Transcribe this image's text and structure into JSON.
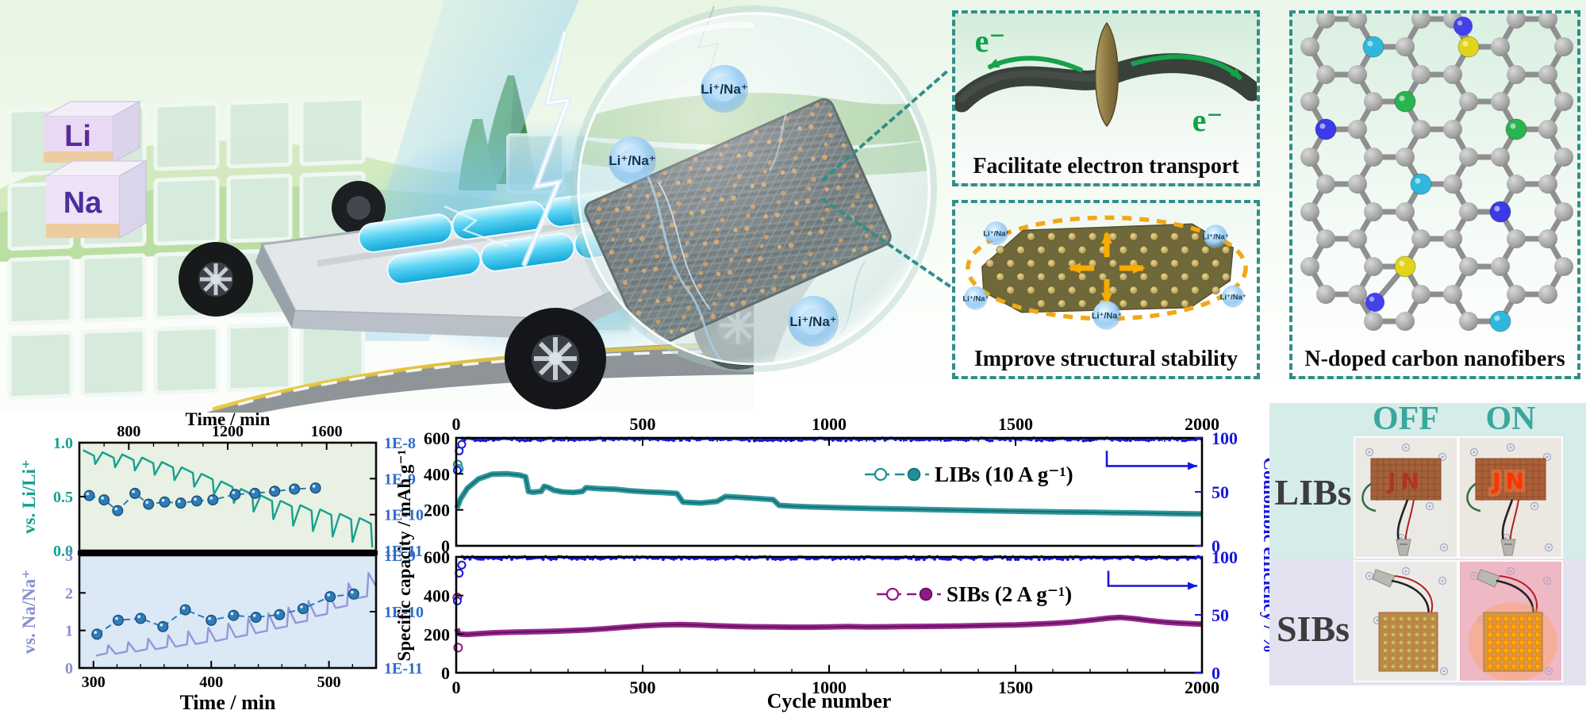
{
  "scene": {
    "cubes": [
      {
        "symbol": "Li"
      },
      {
        "symbol": "Na"
      }
    ],
    "ion_labels": [
      "Li⁺/Na⁺",
      "Li⁺/Na⁺",
      "Li⁺/Na⁺"
    ]
  },
  "callouts": {
    "electron": {
      "caption": "Facilitate electron transport",
      "labels": [
        "e⁻",
        "e⁻"
      ],
      "arrow_color": "#16a24a"
    },
    "stability": {
      "caption": "Improve structural stability",
      "arrow_color": "#f6a800",
      "ions": [
        "Li⁺/Na⁺",
        "Li⁺/Na⁺",
        "Li⁺/Na⁺",
        "Li⁺/Na⁺",
        "Li⁺/Na⁺"
      ]
    },
    "molecule": {
      "caption": "N-doped carbon nanofibers",
      "hetero": [
        [
          88,
          30,
          "#2fb7dd"
        ],
        [
          235,
          52,
          "#e0d41c"
        ],
        [
          123,
          110,
          "#28b44e"
        ],
        [
          52,
          165,
          "#3a3ae8"
        ],
        [
          143,
          212,
          "#2fb7dd"
        ],
        [
          272,
          163,
          "#28b44e"
        ],
        [
          292,
          248,
          "#3a3ae8"
        ],
        [
          130,
          332,
          "#e0d41c"
        ],
        [
          255,
          376,
          "#2fb7dd"
        ]
      ],
      "pendants": [
        [
          235,
          52,
          215,
          16,
          "#4242e8"
        ],
        [
          130,
          332,
          104,
          364,
          "#4242e8"
        ]
      ]
    }
  },
  "photos": {
    "col_headers": [
      "OFF",
      "ON"
    ],
    "row_headers": [
      "LIBs",
      "SIBs"
    ],
    "led_label": "JN",
    "header_color": "#38a89d"
  },
  "palette": {
    "callout_border": "#2f8f88",
    "electron_green": "#12a24a",
    "stability_orange": "#f6a800",
    "libs_teal": "#1f8f96",
    "sibs_purple": "#8e1886",
    "coulombic_blue": "#1717dd",
    "diffusion_dot_blue": "#2e7cb8",
    "li_axis_teal": "#16a08e",
    "na_axis_purple": "#8a8fd2"
  },
  "chart_data": [
    {
      "type": "line",
      "id": "gitt",
      "xlabel_top": "Time / min",
      "xlabel_bottom": "Time / min",
      "right_axis_color": "#2f6cc8",
      "grid": false,
      "panels": [
        {
          "name": "LIB GITT",
          "ylabel": "vs. Li/Li⁺",
          "axis_color": "#16a08e",
          "bg": "#e8f1e3",
          "xlim": [
            600,
            1800
          ],
          "x_ticks": [
            800,
            1200,
            1600
          ],
          "minor_step": 100,
          "ylim": [
            0,
            1
          ],
          "y_ticks": [
            "1.0",
            "0.5",
            "0.0"
          ],
          "right_labels": [
            "1E-8",
            "1E-9",
            "1E-10",
            "1E-11"
          ],
          "line_color": "#16a08e",
          "sawtooth": {
            "x0": 615,
            "period": 80,
            "slope": 0.05,
            "drop": 0.22,
            "tops": [
              0.93,
              0.91,
              0.89,
              0.86,
              0.82,
              0.77,
              0.71,
              0.64,
              0.57,
              0.51,
              0.46,
              0.42,
              0.38,
              0.34,
              0.3
            ]
          },
          "dot_color": "#2e7cb8",
          "dots": [
            [
              640,
              0.51
            ],
            [
              700,
              0.47
            ],
            [
              755,
              0.37
            ],
            [
              825,
              0.53
            ],
            [
              880,
              0.43
            ],
            [
              945,
              0.45
            ],
            [
              1010,
              0.44
            ],
            [
              1075,
              0.46
            ],
            [
              1140,
              0.47
            ],
            [
              1230,
              0.52
            ],
            [
              1310,
              0.53
            ],
            [
              1390,
              0.55
            ],
            [
              1470,
              0.57
            ],
            [
              1555,
              0.58
            ]
          ]
        },
        {
          "name": "SIB GITT",
          "ylabel": "vs. Na/Na⁺",
          "axis_color": "#8a8fd2",
          "bg": "#dbe8f6",
          "xlim": [
            288,
            540
          ],
          "x_ticks": [
            300,
            400,
            500
          ],
          "minor_step": 20,
          "ylim": [
            0,
            3
          ],
          "y_ticks": [
            "3",
            "2",
            "1",
            "0"
          ],
          "right_labels": [
            "1E-9",
            "1E-10",
            "1E-11"
          ],
          "line_color": "#9198d8",
          "sawtooth": {
            "x0": 302,
            "period": 17,
            "slope": -0.06,
            "drop": -0.62,
            "tops": [
              0.33,
              0.38,
              0.44,
              0.5,
              0.57,
              0.64,
              0.72,
              0.82,
              0.93,
              1.05,
              1.2,
              1.38,
              1.6,
              1.85
            ]
          },
          "dot_color": "#2e7cb8",
          "dots": [
            [
              303,
              0.9
            ],
            [
              321,
              1.27
            ],
            [
              340,
              1.32
            ],
            [
              359,
              1.1
            ],
            [
              378,
              1.55
            ],
            [
              400,
              1.27
            ],
            [
              419,
              1.4
            ],
            [
              438,
              1.35
            ],
            [
              458,
              1.42
            ],
            [
              478,
              1.58
            ],
            [
              501,
              1.9
            ],
            [
              521,
              1.97
            ]
          ]
        }
      ]
    },
    {
      "type": "scatter",
      "id": "cycling",
      "xlabel": "Cycle number",
      "ylabel_left": "Specific capacity / mAh g⁻¹",
      "ylabel_right": "Coulombic efficiency / %",
      "xlim": [
        0,
        2000
      ],
      "x_ticks": [
        0,
        500,
        1000,
        1500,
        2000
      ],
      "minor_step": 100,
      "ce_color": "#1717dd",
      "grid": false,
      "panels": [
        {
          "legend": "LIBs (10 A g⁻¹)",
          "cap_color": "#1f8f96",
          "cap_dark": "#0f6b72",
          "ylim": [
            0,
            600
          ],
          "y_ticks": [
            0,
            200,
            400,
            600
          ],
          "ce_ticks": [
            100,
            50,
            0
          ],
          "ce_level": 98.6,
          "ce_start": [
            [
              3,
              70
            ],
            [
              8,
              88
            ],
            [
              15,
              94
            ]
          ],
          "cap_start": [
            [
              4,
              452
            ],
            [
              7,
              428
            ]
          ],
          "legend_xy": [
            515,
            46
          ],
          "arrow": [
            820,
            88,
            74
          ],
          "capacity": [
            [
              2,
              210
            ],
            [
              12,
              262
            ],
            [
              30,
              320
            ],
            [
              60,
              372
            ],
            [
              95,
              398
            ],
            [
              135,
              401
            ],
            [
              170,
              393
            ],
            [
              186,
              384
            ],
            [
              194,
              302
            ],
            [
              205,
              298
            ],
            [
              228,
              303
            ],
            [
              236,
              331
            ],
            [
              248,
              324
            ],
            [
              262,
              309
            ],
            [
              285,
              300
            ],
            [
              315,
              297
            ],
            [
              338,
              302
            ],
            [
              348,
              323
            ],
            [
              380,
              318
            ],
            [
              430,
              314
            ],
            [
              465,
              306
            ],
            [
              510,
              300
            ],
            [
              555,
              296
            ],
            [
              592,
              291
            ],
            [
              608,
              243
            ],
            [
              655,
              238
            ],
            [
              700,
              247
            ],
            [
              722,
              274
            ],
            [
              765,
              269
            ],
            [
              815,
              262
            ],
            [
              850,
              257
            ],
            [
              866,
              225
            ],
            [
              905,
              220
            ],
            [
              955,
              216
            ],
            [
              1010,
              213
            ],
            [
              1110,
              208
            ],
            [
              1210,
              204
            ],
            [
              1310,
              200
            ],
            [
              1410,
              196
            ],
            [
              1510,
              192
            ],
            [
              1610,
              189
            ],
            [
              1710,
              186
            ],
            [
              1810,
              183
            ],
            [
              1905,
              180
            ],
            [
              2000,
              177
            ]
          ]
        },
        {
          "legend": "SIBs (2 A g⁻¹)",
          "cap_color": "#8e1886",
          "cap_dark": "#5e0e58",
          "ylim": [
            0,
            600
          ],
          "y_ticks": [
            0,
            200,
            400,
            600
          ],
          "ce_ticks": [
            100,
            50,
            0
          ],
          "ce_level": 99.0,
          "ce_start": [
            [
              3,
              62
            ],
            [
              8,
              86
            ],
            [
              15,
              93
            ]
          ],
          "cap_start": [
            [
              3,
              390
            ],
            [
              5,
              130
            ]
          ],
          "legend_xy": [
            530,
            47
          ],
          "arrow": [
            822,
            88,
            75
          ],
          "capacity": [
            [
              2,
              228
            ],
            [
              6,
              205
            ],
            [
              12,
              200
            ],
            [
              30,
              198
            ],
            [
              60,
              202
            ],
            [
              100,
              207
            ],
            [
              150,
              210
            ],
            [
              200,
              212
            ],
            [
              250,
              214
            ],
            [
              300,
              218
            ],
            [
              350,
              222
            ],
            [
              400,
              228
            ],
            [
              450,
              236
            ],
            [
              500,
              243
            ],
            [
              550,
              248
            ],
            [
              600,
              250
            ],
            [
              650,
              247
            ],
            [
              700,
              243
            ],
            [
              750,
              240
            ],
            [
              800,
              238
            ],
            [
              850,
              237
            ],
            [
              900,
              236
            ],
            [
              950,
              236
            ],
            [
              1000,
              237
            ],
            [
              1050,
              239
            ],
            [
              1100,
              237
            ],
            [
              1150,
              238
            ],
            [
              1200,
              239
            ],
            [
              1250,
              240
            ],
            [
              1300,
              241
            ],
            [
              1350,
              242
            ],
            [
              1400,
              244
            ],
            [
              1450,
              246
            ],
            [
              1500,
              248
            ],
            [
              1550,
              252
            ],
            [
              1600,
              256
            ],
            [
              1650,
              262
            ],
            [
              1700,
              272
            ],
            [
              1750,
              283
            ],
            [
              1780,
              287
            ],
            [
              1820,
              280
            ],
            [
              1860,
              270
            ],
            [
              1900,
              262
            ],
            [
              1950,
              256
            ],
            [
              2000,
              252
            ]
          ]
        }
      ]
    }
  ]
}
